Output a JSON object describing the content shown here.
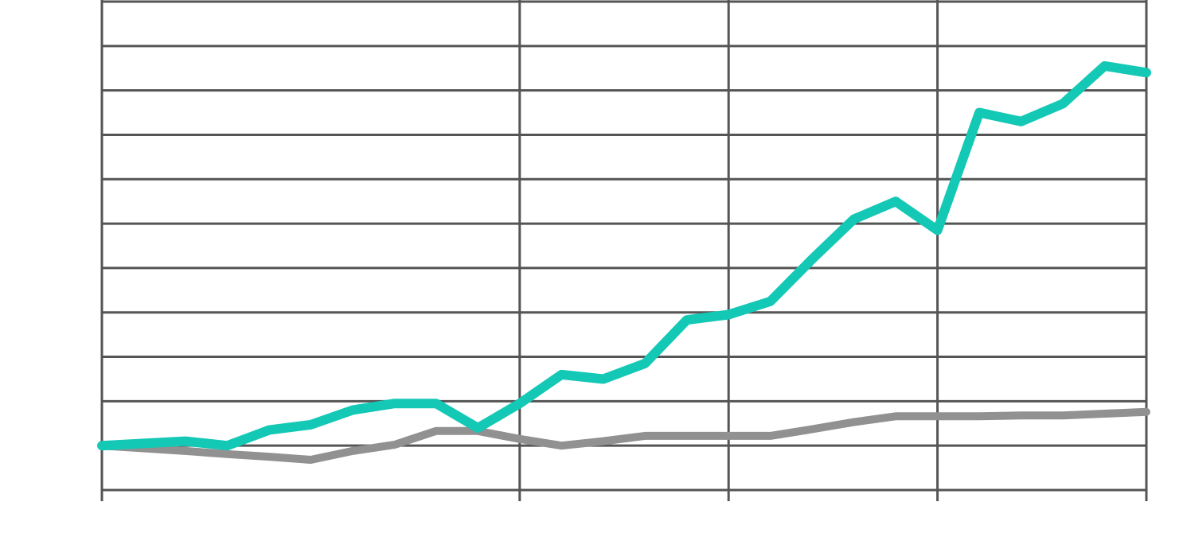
{
  "chart_data": {
    "type": "line",
    "title": "",
    "xlabel": "",
    "ylabel": "",
    "x": [
      0,
      1,
      2,
      3,
      4,
      5,
      6,
      7,
      8,
      9,
      10,
      11,
      12,
      13,
      14,
      15,
      16,
      17,
      18,
      19,
      20,
      21,
      22,
      23,
      24,
      25
    ],
    "ylim": [
      -1,
      10
    ],
    "xlim": [
      0,
      25
    ],
    "y_grid_step": 1,
    "x_grid_at": [
      10,
      15,
      20
    ],
    "grid": true,
    "series": [
      {
        "color": "#14C8B6",
        "values": [
          0,
          0.05,
          0.1,
          0,
          0.35,
          0.47,
          0.8,
          0.95,
          0.95,
          0.4,
          0.95,
          1.6,
          1.5,
          1.85,
          2.83,
          2.95,
          3.25,
          4.2,
          5.1,
          5.5,
          4.85,
          7.5,
          7.3,
          7.7,
          8.55,
          8.4
        ]
      },
      {
        "color": "#919191",
        "values": [
          0,
          -0.06,
          -0.12,
          -0.19,
          -0.25,
          -0.32,
          -0.12,
          0.02,
          0.33,
          0.33,
          0.15,
          0,
          0.1,
          0.22,
          0.22,
          0.22,
          0.22,
          0.37,
          0.53,
          0.66,
          0.66,
          0.66,
          0.68,
          0.68,
          0.72,
          0.76
        ]
      }
    ]
  }
}
